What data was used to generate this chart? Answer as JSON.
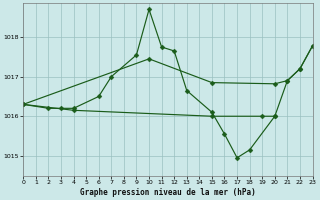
{
  "title": "Graphe pression niveau de la mer (hPa)",
  "bg": "#cce8e8",
  "grid_color": "#9ac0c0",
  "lc": "#1a5c1a",
  "xlim": [
    0,
    23
  ],
  "ylim": [
    1014.5,
    1018.85
  ],
  "yticks": [
    1015,
    1016,
    1017,
    1018
  ],
  "xticks": [
    0,
    1,
    2,
    3,
    4,
    5,
    6,
    7,
    8,
    9,
    10,
    11,
    12,
    13,
    14,
    15,
    16,
    17,
    18,
    19,
    20,
    21,
    22,
    23
  ],
  "line_upper_diag": {
    "x": [
      0,
      10,
      15,
      20,
      21,
      22,
      23
    ],
    "y": [
      1016.3,
      1017.45,
      1016.85,
      1016.82,
      1016.9,
      1017.2,
      1017.78
    ]
  },
  "line_lower_flat": {
    "x": [
      0,
      4,
      15,
      19,
      20
    ],
    "y": [
      1016.3,
      1016.15,
      1016.0,
      1016.0,
      1016.0
    ]
  },
  "line_main": {
    "x": [
      0,
      2,
      3,
      4,
      6,
      7,
      9,
      10,
      11,
      12,
      13,
      15,
      16,
      17,
      18,
      20,
      21,
      22,
      23
    ],
    "y": [
      1016.3,
      1016.2,
      1016.2,
      1016.2,
      1016.5,
      1017.0,
      1017.55,
      1018.7,
      1017.75,
      1017.65,
      1016.65,
      1016.1,
      1015.55,
      1014.95,
      1015.15,
      1016.0,
      1016.9,
      1017.2,
      1017.78
    ]
  },
  "line_upper2": {
    "x": [
      2,
      6,
      7,
      9,
      10,
      11,
      12,
      15
    ],
    "y": [
      1016.2,
      1016.5,
      1017.0,
      1017.55,
      1018.7,
      1017.75,
      1017.65,
      1016.1
    ]
  },
  "ms": 2.5,
  "lw": 0.85
}
